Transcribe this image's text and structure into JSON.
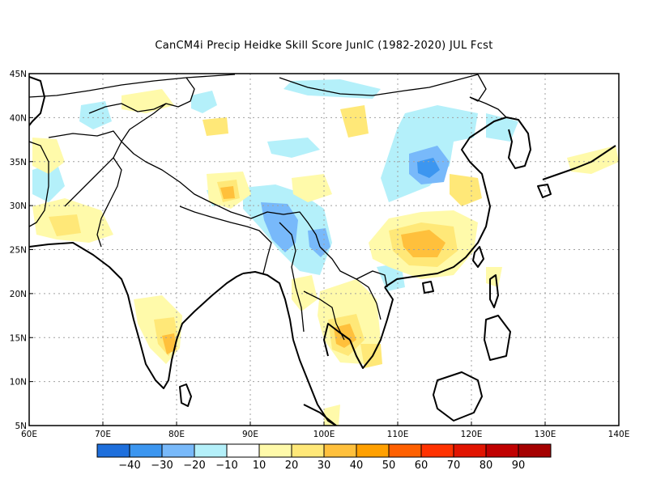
{
  "title": "CanCM4i Precip Heidke Skill Score JunIC (1982-2020) JUL Fcst",
  "axes": {
    "lon_ticks": [
      "60E",
      "70E",
      "80E",
      "90E",
      "100E",
      "110E",
      "120E",
      "130E",
      "140E"
    ],
    "lat_ticks": [
      "45N",
      "40N",
      "35N",
      "30N",
      "25N",
      "20N",
      "15N",
      "10N",
      "5N"
    ]
  },
  "colorbar": {
    "colors": [
      "#1e6fdc",
      "#3c96f0",
      "#78b9fa",
      "#b4f0fa",
      "#ffffff",
      "#fffaaa",
      "#ffe878",
      "#ffc03c",
      "#ffa000",
      "#ff6000",
      "#ff3200",
      "#e11400",
      "#c00000",
      "#a50000"
    ],
    "labels": [
      "-40",
      "-30",
      "-20",
      "-10",
      "10",
      "20",
      "30",
      "40",
      "50",
      "60",
      "70",
      "80",
      "90"
    ]
  },
  "chart_data": {
    "type": "heatmap",
    "title": "CanCM4i Precip Heidke Skill Score JunIC (1982-2020) JUL Fcst",
    "x_range": [
      60,
      140
    ],
    "y_range": [
      5,
      45
    ],
    "levels": [
      -40,
      -30,
      -20,
      -10,
      10,
      20,
      30,
      40,
      50,
      60,
      70,
      80,
      90
    ],
    "grid": true
  }
}
